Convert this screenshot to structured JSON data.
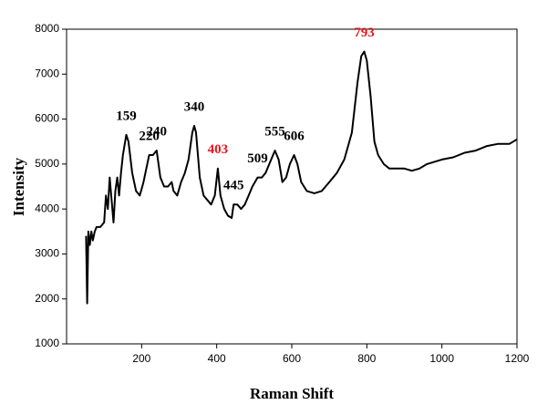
{
  "chart_data": {
    "type": "line",
    "xlabel": "Raman Shift",
    "ylabel": "Intensity",
    "xlim": [
      0,
      1200
    ],
    "ylim": [
      1000,
      8000
    ],
    "xticks": [
      200,
      400,
      600,
      800,
      1000,
      1200
    ],
    "yticks": [
      1000,
      2000,
      3000,
      4000,
      5000,
      6000,
      7000,
      8000
    ],
    "x": [
      52,
      55,
      58,
      62,
      66,
      70,
      75,
      80,
      90,
      100,
      105,
      110,
      115,
      120,
      125,
      130,
      135,
      140,
      145,
      150,
      159,
      165,
      175,
      185,
      195,
      205,
      215,
      220,
      230,
      240,
      250,
      260,
      270,
      280,
      285,
      295,
      305,
      315,
      325,
      335,
      340,
      345,
      355,
      365,
      375,
      385,
      395,
      403,
      410,
      420,
      430,
      440,
      445,
      455,
      465,
      475,
      485,
      495,
      509,
      520,
      530,
      545,
      555,
      565,
      575,
      585,
      595,
      606,
      615,
      625,
      640,
      660,
      680,
      700,
      720,
      740,
      760,
      775,
      785,
      793,
      800,
      810,
      820,
      830,
      845,
      860,
      880,
      900,
      920,
      940,
      960,
      980,
      1000,
      1030,
      1060,
      1090,
      1120,
      1150,
      1180,
      1200
    ],
    "series": [
      {
        "color": "#000000",
        "values": [
          3400,
          1900,
          3500,
          3200,
          3500,
          3300,
          3500,
          3600,
          3600,
          3700,
          4300,
          4000,
          4700,
          4200,
          3700,
          4400,
          4700,
          4300,
          4800,
          5200,
          5650,
          5500,
          4800,
          4400,
          4300,
          4600,
          5000,
          5200,
          5200,
          5300,
          4700,
          4500,
          4500,
          4600,
          4400,
          4300,
          4600,
          4800,
          5100,
          5700,
          5850,
          5700,
          4700,
          4300,
          4200,
          4100,
          4300,
          4900,
          4300,
          4000,
          3850,
          3800,
          4100,
          4100,
          4000,
          4100,
          4300,
          4500,
          4700,
          4700,
          4800,
          5100,
          5300,
          5100,
          4600,
          4700,
          5000,
          5200,
          5000,
          4600,
          4400,
          4350,
          4400,
          4600,
          4800,
          5100,
          5700,
          6800,
          7400,
          7500,
          7300,
          6500,
          5500,
          5200,
          5000,
          4900,
          4900,
          4900,
          4850,
          4900,
          5000,
          5050,
          5100,
          5150,
          5250,
          5300,
          5400,
          5450,
          5450,
          5550
        ]
      }
    ],
    "annotations": [
      {
        "text": "159",
        "x": 159,
        "color": "#000000"
      },
      {
        "text": "220",
        "x": 220,
        "color": "#000000"
      },
      {
        "text": "240",
        "x": 240,
        "color": "#000000"
      },
      {
        "text": "340",
        "x": 340,
        "color": "#000000"
      },
      {
        "text": "403",
        "x": 403,
        "color": "#e8141b"
      },
      {
        "text": "445",
        "x": 445,
        "color": "#000000"
      },
      {
        "text": "509",
        "x": 509,
        "color": "#000000"
      },
      {
        "text": "555",
        "x": 555,
        "color": "#000000"
      },
      {
        "text": "606",
        "x": 606,
        "color": "#000000"
      },
      {
        "text": "793",
        "x": 793,
        "color": "#e8141b"
      }
    ]
  }
}
